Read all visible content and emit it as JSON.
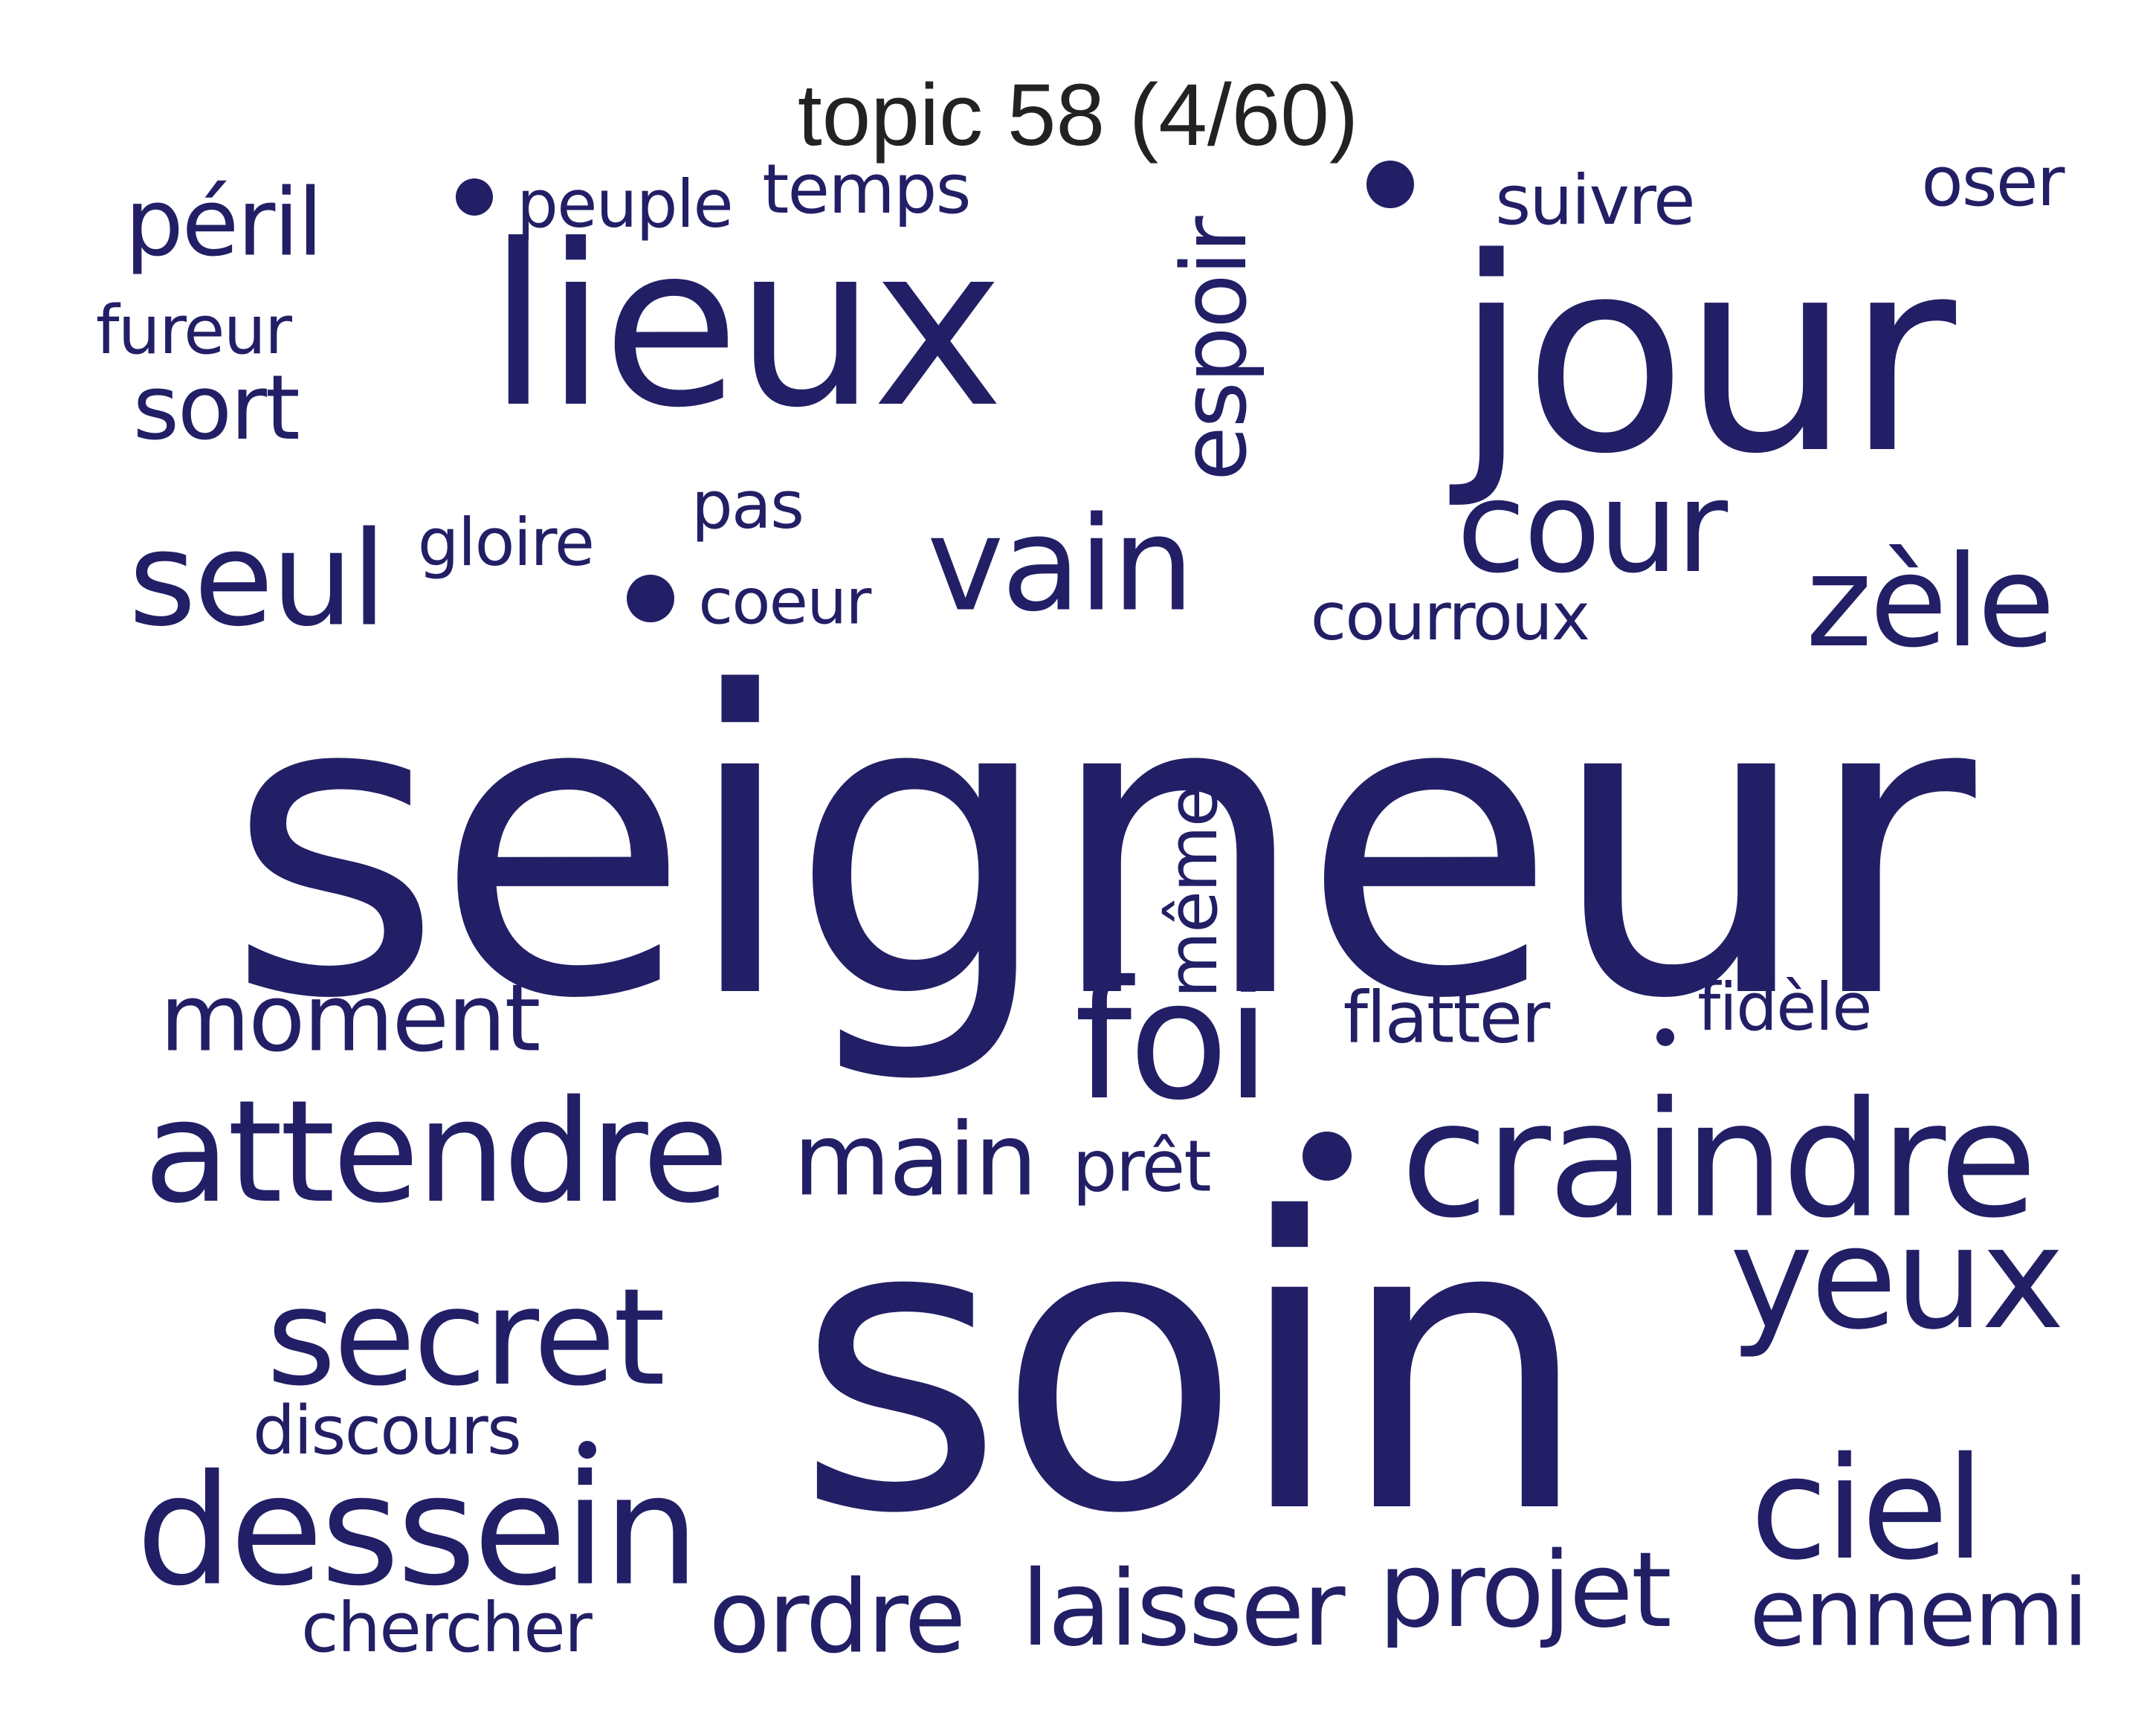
{
  "title": "topic 58 (4/60)",
  "colors": {
    "word": "#221f66",
    "background": "#ffffff",
    "title": "#222222"
  },
  "words": [
    {
      "text": "seigneur",
      "weight": 100,
      "orientation": "horizontal"
    },
    {
      "text": "soin",
      "weight": 88,
      "orientation": "horizontal"
    },
    {
      "text": "lieux",
      "weight": 70,
      "orientation": "horizontal"
    },
    {
      "text": "jour",
      "weight": 68,
      "orientation": "horizontal"
    },
    {
      "text": "craindre",
      "weight": 42,
      "orientation": "horizontal"
    },
    {
      "text": "attendre",
      "weight": 40,
      "orientation": "horizontal"
    },
    {
      "text": "dessein",
      "weight": 38,
      "orientation": "horizontal"
    },
    {
      "text": "foi",
      "weight": 36,
      "orientation": "horizontal"
    },
    {
      "text": "secret",
      "weight": 35,
      "orientation": "horizontal"
    },
    {
      "text": "yeux",
      "weight": 34,
      "orientation": "horizontal"
    },
    {
      "text": "ciel",
      "weight": 33,
      "orientation": "horizontal"
    },
    {
      "text": "vain",
      "weight": 32,
      "orientation": "horizontal"
    },
    {
      "text": "cour",
      "weight": 31,
      "orientation": "horizontal"
    },
    {
      "text": "zèle",
      "weight": 30,
      "orientation": "horizontal"
    },
    {
      "text": "seul",
      "weight": 29,
      "orientation": "horizontal"
    },
    {
      "text": "projet",
      "weight": 25,
      "orientation": "horizontal"
    },
    {
      "text": "laisser",
      "weight": 24,
      "orientation": "horizontal"
    },
    {
      "text": "ordre",
      "weight": 24,
      "orientation": "horizontal"
    },
    {
      "text": "main",
      "weight": 24,
      "orientation": "horizontal"
    },
    {
      "text": "ennemi",
      "weight": 23,
      "orientation": "horizontal"
    },
    {
      "text": "moment",
      "weight": 22,
      "orientation": "horizontal"
    },
    {
      "text": "espoir",
      "weight": 21,
      "orientation": "vertical"
    },
    {
      "text": "sort",
      "weight": 20,
      "orientation": "horizontal"
    },
    {
      "text": "péril",
      "weight": 20,
      "orientation": "horizontal"
    },
    {
      "text": "même",
      "weight": 18,
      "orientation": "vertical"
    },
    {
      "text": "chercher",
      "weight": 17,
      "orientation": "horizontal"
    },
    {
      "text": "flatter",
      "weight": 17,
      "orientation": "horizontal"
    },
    {
      "text": "prêt",
      "weight": 16,
      "orientation": "horizontal"
    },
    {
      "text": "courroux",
      "weight": 16,
      "orientation": "horizontal"
    },
    {
      "text": "fidèle",
      "weight": 16,
      "orientation": "horizontal"
    },
    {
      "text": "temps",
      "weight": 16,
      "orientation": "horizontal"
    },
    {
      "text": "discours",
      "weight": 15,
      "orientation": "horizontal"
    },
    {
      "text": "suivre",
      "weight": 15,
      "orientation": "horizontal"
    },
    {
      "text": "oser",
      "weight": 15,
      "orientation": "horizontal"
    },
    {
      "text": "fureur",
      "weight": 15,
      "orientation": "horizontal"
    },
    {
      "text": "gloire",
      "weight": 15,
      "orientation": "horizontal"
    },
    {
      "text": "peuple",
      "weight": 14,
      "orientation": "horizontal"
    },
    {
      "text": "coeur",
      "weight": 14,
      "orientation": "horizontal"
    },
    {
      "text": "pas",
      "weight": 14,
      "orientation": "horizontal"
    }
  ]
}
